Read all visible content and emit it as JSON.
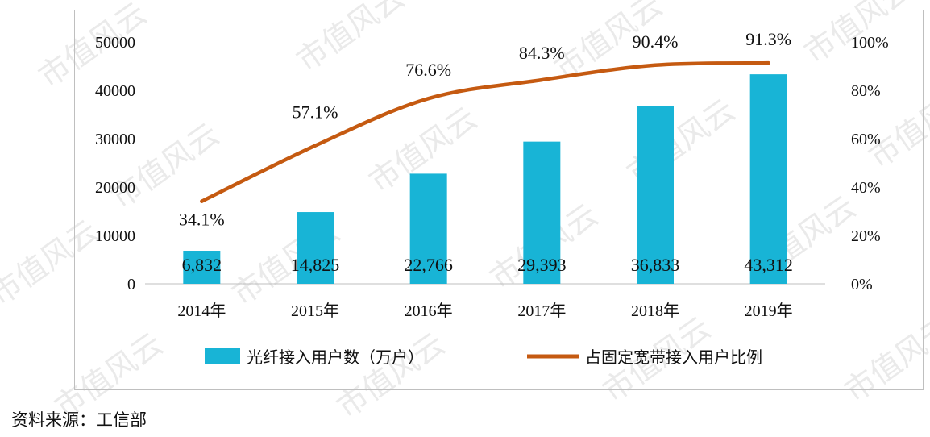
{
  "chart_data": {
    "type": "bar+line",
    "categories": [
      "2014年",
      "2015年",
      "2016年",
      "2017年",
      "2018年",
      "2019年"
    ],
    "series": [
      {
        "name": "光纤接入用户数（万户）",
        "type": "bar",
        "axis": "left",
        "values": [
          6832,
          14825,
          22766,
          29393,
          36833,
          43312
        ],
        "labels": [
          "6,832",
          "14,825",
          "22,766",
          "29,393",
          "36,833",
          "43,312"
        ],
        "color": "#18b4d6"
      },
      {
        "name": "占固定宽带接入用户比例",
        "type": "line",
        "axis": "right",
        "values": [
          34.1,
          57.1,
          76.6,
          84.3,
          90.4,
          91.3
        ],
        "labels": [
          "34.1%",
          "57.1%",
          "76.6%",
          "84.3%",
          "90.4%",
          "91.3%"
        ],
        "color": "#c55a11"
      }
    ],
    "y_left": {
      "ylim": [
        0,
        50000
      ],
      "ticks": [
        "0",
        "10000",
        "20000",
        "30000",
        "40000",
        "50000"
      ]
    },
    "y_right": {
      "ylim": [
        0,
        100
      ],
      "ticks": [
        "0%",
        "20%",
        "40%",
        "60%",
        "80%",
        "100%"
      ]
    },
    "legend_position": "bottom",
    "grid": false
  },
  "source": "资料来源：工信部",
  "watermark": "市值风云"
}
